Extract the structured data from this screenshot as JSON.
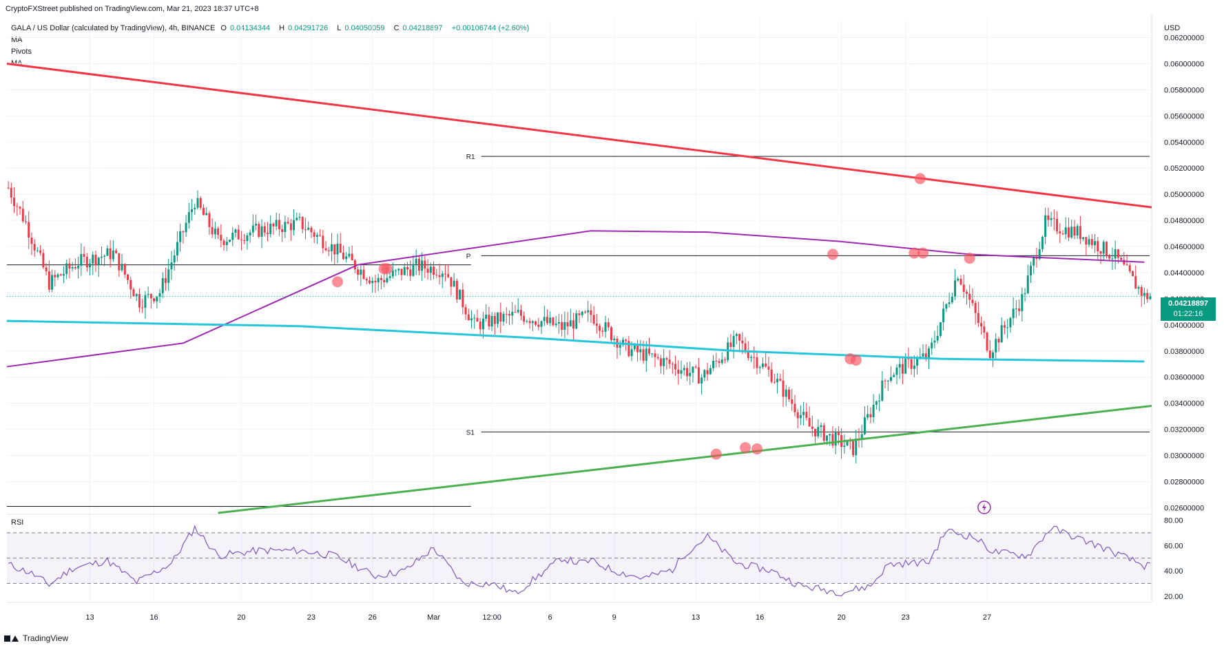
{
  "header": {
    "published": "CryptoFXStreet published on TradingView.com, Mar 21, 2023 18:37 UTC+8",
    "symbol": "GALA / US Dollar (calculated by TradingView), 4h, BINANCE",
    "open_label": "O",
    "open": "0.04134344",
    "high_label": "H",
    "high": "0.04291726",
    "low_label": "L",
    "low": "0.04050059",
    "close_label": "C",
    "close": "0.04218897",
    "change": "+0.00106744 (+2.60%)",
    "indicators": [
      "MA",
      "Pivots",
      "MA"
    ]
  },
  "last_price": {
    "value": "0.04218897",
    "countdown": "01:22:16"
  },
  "footer": {
    "brand": "TradingView"
  },
  "colors": {
    "up": "#089981",
    "down": "#f23645",
    "resistance": "#f23645",
    "support": "#4caf50",
    "ma_fast": "#9c27b0",
    "ma_slow": "#26c6da",
    "rsi": "#7e57c2",
    "marker": "#f7525f"
  },
  "chart_data": [
    {
      "type": "candlestick",
      "title": "GALA / US Dollar",
      "timeframe": "4h",
      "currency_label": "USD",
      "ylim": [
        0.0256,
        0.0634
      ],
      "y_ticks": [
        "0.06200000",
        "0.06000000",
        "0.05800000",
        "0.05600000",
        "0.05400000",
        "0.05200000",
        "0.05000000",
        "0.04800000",
        "0.04600000",
        "0.04400000",
        "0.04200000",
        "0.04000000",
        "0.03800000",
        "0.03600000",
        "0.03400000",
        "0.03200000",
        "0.03000000",
        "0.02800000",
        "0.02600000"
      ],
      "x_ticks": [
        "13",
        "16",
        "20",
        "23",
        "26",
        "Mar",
        "12:00",
        "6",
        "9",
        "13",
        "16",
        "20",
        "23",
        "27"
      ],
      "pivot_levels": [
        {
          "label": "R1",
          "value": 0.0529
        },
        {
          "label": "P",
          "value": 0.0453
        },
        {
          "label": "S1",
          "value": 0.0318
        }
      ],
      "last_close": 0.04218897,
      "markers_note": "touch points highlighted on trendlines and pivot levels",
      "path": [
        [
          0,
          0.0505
        ],
        [
          6,
          0.0478
        ],
        [
          14,
          0.0432
        ],
        [
          24,
          0.0448
        ],
        [
          36,
          0.0455
        ],
        [
          45,
          0.0418
        ],
        [
          52,
          0.0425
        ],
        [
          64,
          0.0495
        ],
        [
          72,
          0.0465
        ],
        [
          85,
          0.0472
        ],
        [
          100,
          0.0478
        ],
        [
          112,
          0.0458
        ],
        [
          126,
          0.0433
        ],
        [
          140,
          0.0445
        ],
        [
          150,
          0.0442
        ],
        [
          160,
          0.04
        ],
        [
          175,
          0.0408
        ],
        [
          190,
          0.0398
        ],
        [
          200,
          0.0408
        ],
        [
          212,
          0.0382
        ],
        [
          225,
          0.0372
        ],
        [
          238,
          0.036
        ],
        [
          250,
          0.0388
        ],
        [
          262,
          0.0362
        ],
        [
          275,
          0.0322
        ],
        [
          290,
          0.0305
        ],
        [
          302,
          0.0362
        ],
        [
          316,
          0.0377
        ],
        [
          326,
          0.044
        ],
        [
          337,
          0.038
        ],
        [
          348,
          0.042
        ],
        [
          356,
          0.0478
        ],
        [
          368,
          0.047
        ],
        [
          380,
          0.0452
        ],
        [
          390,
          0.0422
        ]
      ]
    },
    {
      "type": "line",
      "title": "RSI",
      "ylim": [
        15,
        83
      ],
      "y_ticks": [
        "80.00",
        "60.00",
        "40.00",
        "20.00"
      ],
      "bands": [
        70,
        50,
        30
      ],
      "path": [
        [
          0,
          45
        ],
        [
          8,
          38
        ],
        [
          14,
          29
        ],
        [
          22,
          42
        ],
        [
          34,
          48
        ],
        [
          44,
          31
        ],
        [
          56,
          46
        ],
        [
          64,
          74
        ],
        [
          72,
          52
        ],
        [
          86,
          56
        ],
        [
          100,
          56
        ],
        [
          112,
          52
        ],
        [
          126,
          36
        ],
        [
          136,
          40
        ],
        [
          146,
          58
        ],
        [
          156,
          30
        ],
        [
          166,
          30
        ],
        [
          174,
          22
        ],
        [
          190,
          50
        ],
        [
          196,
          46
        ],
        [
          200,
          48
        ],
        [
          208,
          40
        ],
        [
          218,
          34
        ],
        [
          228,
          41
        ],
        [
          232,
          53
        ],
        [
          240,
          67
        ],
        [
          250,
          46
        ],
        [
          262,
          40
        ],
        [
          272,
          28
        ],
        [
          286,
          23
        ],
        [
          296,
          28
        ],
        [
          302,
          45
        ],
        [
          316,
          47
        ],
        [
          322,
          72
        ],
        [
          332,
          66
        ],
        [
          338,
          55
        ],
        [
          350,
          52
        ],
        [
          358,
          74
        ],
        [
          368,
          65
        ],
        [
          374,
          60
        ],
        [
          384,
          50
        ],
        [
          390,
          44
        ]
      ]
    }
  ]
}
